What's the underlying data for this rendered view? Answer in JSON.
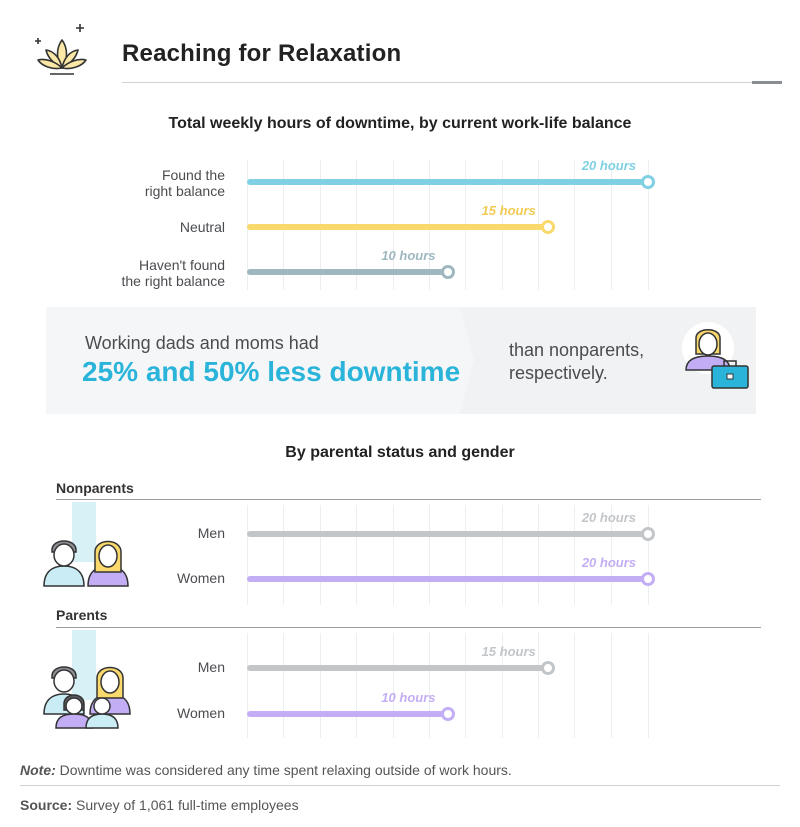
{
  "header": {
    "title": "Reaching for Relaxation",
    "logo_icon": "lotus-icon"
  },
  "colors": {
    "blue": "#7fd0e3",
    "blue_text": "#7fd0e3",
    "yellow": "#f9d86c",
    "yellow_text": "#f1cb54",
    "steel": "#9fb8c0",
    "gray": "#c3c6c9",
    "purple": "#c3aef5",
    "accent": "#2bb4d9"
  },
  "chart_data": [
    {
      "type": "bar",
      "orientation": "horizontal",
      "title": "Total weekly hours of downtime, by current work-life balance",
      "categories": [
        "Found the right balance",
        "Neutral",
        "Haven't found the right balance"
      ],
      "category_lines": [
        [
          "Found the",
          "right balance"
        ],
        [
          "Neutral"
        ],
        [
          "Haven't found",
          "the right balance"
        ]
      ],
      "values": [
        20,
        15,
        10
      ],
      "value_labels": [
        "20 hours",
        "15 hours",
        "10 hours"
      ],
      "unit": "hours",
      "xlim": [
        0,
        20
      ],
      "grid": true
    },
    {
      "type": "bar",
      "orientation": "horizontal",
      "title": "By parental status and gender",
      "groups": [
        {
          "name": "Nonparents",
          "categories": [
            "Men",
            "Women"
          ],
          "values": [
            20,
            20
          ],
          "value_labels": [
            "20 hours",
            "20 hours"
          ]
        },
        {
          "name": "Parents",
          "categories": [
            "Men",
            "Women"
          ],
          "values": [
            15,
            10
          ],
          "value_labels": [
            "15 hours",
            "10 hours"
          ]
        }
      ],
      "unit": "hours",
      "xlim": [
        0,
        20
      ],
      "grid": true
    }
  ],
  "callout": {
    "line1": "Working dads and moms had",
    "highlight": "25% and 50% less downtime",
    "right_text": "than nonparents, respectively.",
    "icon": "worker-with-briefcase-icon"
  },
  "footer": {
    "note_label": "Note:",
    "note_text": " Downtime was considered any time spent relaxing outside of work hours.",
    "source_label": "Source:",
    "source_text": " Survey of 1,061 full-time employees"
  }
}
